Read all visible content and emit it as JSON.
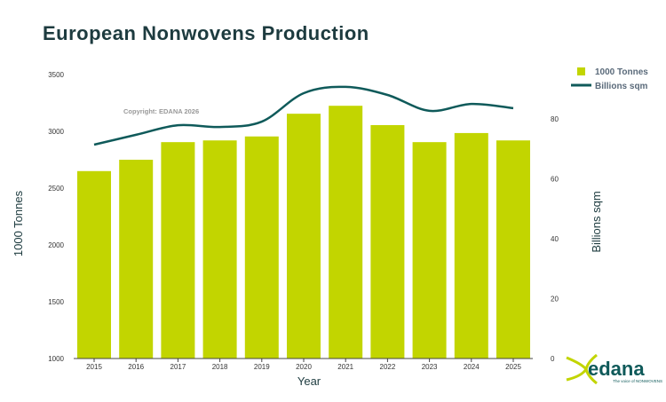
{
  "chart_data": {
    "type": "bar+line",
    "title": "European Nonwovens Production",
    "annotation": "Copyright: EDANA 2026",
    "xlabel": "Year",
    "ylabel": "1000 Tonnes",
    "y2label": "Billions sqm",
    "categories": [
      "2015",
      "2016",
      "2017",
      "2018",
      "2019",
      "2020",
      "2021",
      "2022",
      "2023",
      "2024",
      "2025"
    ],
    "series": [
      {
        "name": "1000 Tonnes",
        "type": "bar",
        "axis": "left",
        "color": "#c2d500",
        "values": [
          2650,
          2750,
          2905,
          2920,
          2955,
          3155,
          3225,
          3055,
          2905,
          2985,
          2920
        ]
      },
      {
        "name": "Billions sqm",
        "type": "line",
        "axis": "right",
        "color": "#0f5a5a",
        "values": [
          71.4,
          74.7,
          77.9,
          77.3,
          79.1,
          88.6,
          90.7,
          88.0,
          82.7,
          85.0,
          83.6
        ]
      }
    ],
    "ylim": [
      1000,
      3500
    ],
    "yticks": [
      "1000",
      "1500",
      "2000",
      "2500",
      "3000",
      "3500"
    ],
    "y2lim": [
      0,
      90
    ],
    "y2ticks": [
      "0",
      "20",
      "40",
      "60",
      "80"
    ],
    "legend": "top-right",
    "grid": false
  },
  "logo": {
    "name": "edana",
    "tagline": "The voice of NONWOVENS"
  }
}
